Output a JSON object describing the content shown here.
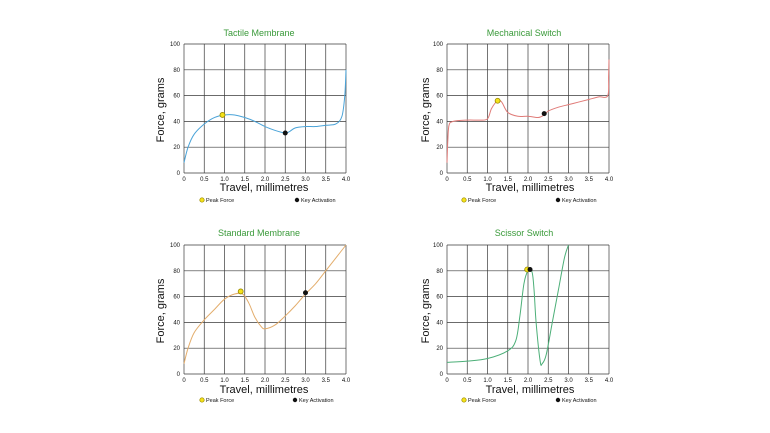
{
  "chart_data": [
    {
      "type": "line",
      "title": "Tactile Membrane",
      "xlabel": "Travel, millimetres",
      "ylabel": "Force, grams",
      "xlim": [
        0,
        4
      ],
      "ylim": [
        0,
        100
      ],
      "xticks": [
        "0",
        "0.5",
        "1.0",
        "1.5",
        "2.0",
        "2.5",
        "3.0",
        "3.5",
        "4.0"
      ],
      "yticks": [
        "0",
        "20",
        "40",
        "60",
        "80",
        "100"
      ],
      "grid": true,
      "line_color": "#4aa3d8",
      "series": [
        {
          "values_xy": [
            [
              0,
              8
            ],
            [
              0.1,
              20
            ],
            [
              0.25,
              30
            ],
            [
              0.5,
              38
            ],
            [
              0.75,
              43
            ],
            [
              1.0,
              45
            ],
            [
              1.25,
              45
            ],
            [
              1.5,
              43
            ],
            [
              1.75,
              40
            ],
            [
              2.0,
              36
            ],
            [
              2.25,
              33
            ],
            [
              2.5,
              31
            ],
            [
              2.6,
              32
            ],
            [
              2.75,
              35
            ],
            [
              3.0,
              36
            ],
            [
              3.25,
              36
            ],
            [
              3.5,
              37
            ],
            [
              3.75,
              38
            ],
            [
              3.9,
              44
            ],
            [
              3.97,
              60
            ],
            [
              4.0,
              80
            ]
          ]
        }
      ],
      "peak": {
        "x": 0.95,
        "y": 45
      },
      "activation": {
        "x": 2.5,
        "y": 31
      },
      "legend": {
        "peak": "Peak Force",
        "activation": "Key Activation"
      }
    },
    {
      "type": "line",
      "title": "Mechanical Switch",
      "xlabel": "Travel, millimetres",
      "ylabel": "Force, grams",
      "xlim": [
        0,
        4
      ],
      "ylim": [
        0,
        100
      ],
      "xticks": [
        "0",
        "0.5",
        "1.0",
        "1.5",
        "2.0",
        "2.5",
        "3.0",
        "3.5",
        "4.0"
      ],
      "yticks": [
        "0",
        "20",
        "40",
        "60",
        "80",
        "100"
      ],
      "grid": true,
      "line_color": "#e07b78",
      "series": [
        {
          "values_xy": [
            [
              0,
              8
            ],
            [
              0.02,
              25
            ],
            [
              0.05,
              37
            ],
            [
              0.15,
              40
            ],
            [
              0.5,
              41
            ],
            [
              0.8,
              41
            ],
            [
              1.0,
              42
            ],
            [
              1.1,
              50
            ],
            [
              1.25,
              56
            ],
            [
              1.35,
              55
            ],
            [
              1.5,
              47
            ],
            [
              1.75,
              44
            ],
            [
              2.0,
              44
            ],
            [
              2.25,
              43
            ],
            [
              2.4,
              45
            ],
            [
              2.5,
              48
            ],
            [
              2.75,
              51
            ],
            [
              3.0,
              53
            ],
            [
              3.25,
              55
            ],
            [
              3.5,
              57
            ],
            [
              3.75,
              59
            ],
            [
              3.97,
              60
            ],
            [
              3.99,
              75
            ],
            [
              4.0,
              88
            ]
          ]
        }
      ],
      "peak": {
        "x": 1.25,
        "y": 56
      },
      "activation": {
        "x": 2.4,
        "y": 46
      },
      "legend": {
        "peak": "Peak Force",
        "activation": "Key Activation"
      }
    },
    {
      "type": "line",
      "title": "Standard Membrane",
      "xlabel": "Travel, millimetres",
      "ylabel": "Force, grams",
      "xlim": [
        0,
        4
      ],
      "ylim": [
        0,
        100
      ],
      "xticks": [
        "0",
        "0.5",
        "1.0",
        "1.5",
        "2.0",
        "2.5",
        "3.0",
        "3.5",
        "4.0"
      ],
      "yticks": [
        "0",
        "20",
        "40",
        "60",
        "80",
        "100"
      ],
      "grid": true,
      "line_color": "#e3ad6c",
      "series": [
        {
          "values_xy": [
            [
              0,
              8
            ],
            [
              0.1,
              20
            ],
            [
              0.25,
              32
            ],
            [
              0.5,
              42
            ],
            [
              0.75,
              50
            ],
            [
              1.0,
              58
            ],
            [
              1.25,
              62
            ],
            [
              1.45,
              62
            ],
            [
              1.6,
              55
            ],
            [
              1.75,
              44
            ],
            [
              1.9,
              37
            ],
            [
              2.0,
              35
            ],
            [
              2.25,
              38
            ],
            [
              2.5,
              45
            ],
            [
              2.75,
              53
            ],
            [
              3.0,
              62
            ],
            [
              3.25,
              70
            ],
            [
              3.5,
              80
            ],
            [
              3.75,
              90
            ],
            [
              4.0,
              100
            ]
          ]
        }
      ],
      "peak": {
        "x": 1.4,
        "y": 64
      },
      "activation": {
        "x": 3.0,
        "y": 63
      },
      "legend": {
        "peak": "Peak Force",
        "activation": "Key Activation"
      }
    },
    {
      "type": "line",
      "title": "Scissor Switch",
      "xlabel": "Travel, millimetres",
      "ylabel": "Force, grams",
      "xlim": [
        0,
        4
      ],
      "ylim": [
        0,
        100
      ],
      "xticks": [
        "0",
        "0.5",
        "1.0",
        "1.5",
        "2.0",
        "2.5",
        "3.0",
        "3.5",
        "4.0"
      ],
      "yticks": [
        "0",
        "20",
        "40",
        "60",
        "80",
        "100"
      ],
      "grid": true,
      "line_color": "#4caf78",
      "series": [
        {
          "values_xy": [
            [
              0,
              9
            ],
            [
              0.5,
              10
            ],
            [
              1.0,
              12
            ],
            [
              1.5,
              18
            ],
            [
              1.7,
              26
            ],
            [
              1.8,
              45
            ],
            [
              1.9,
              70
            ],
            [
              2.0,
              80
            ],
            [
              2.1,
              79
            ],
            [
              2.15,
              65
            ],
            [
              2.2,
              40
            ],
            [
              2.3,
              10
            ],
            [
              2.35,
              8
            ],
            [
              2.45,
              15
            ],
            [
              2.6,
              40
            ],
            [
              2.75,
              65
            ],
            [
              2.9,
              90
            ],
            [
              3.0,
              100
            ]
          ]
        }
      ],
      "peak": {
        "x": 1.98,
        "y": 81
      },
      "activation": {
        "x": 2.05,
        "y": 81
      },
      "legend": {
        "peak": "Peak Force",
        "activation": "Key Activation"
      }
    }
  ]
}
